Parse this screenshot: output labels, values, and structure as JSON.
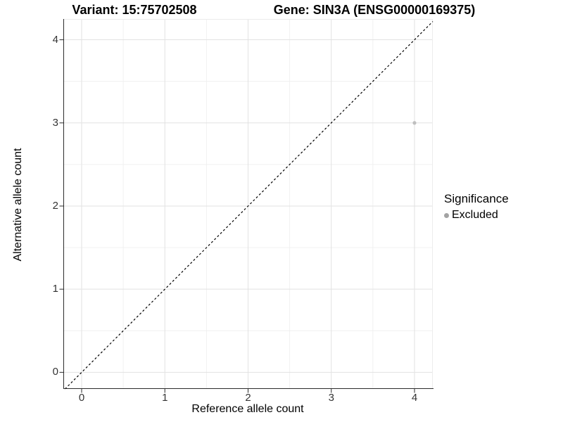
{
  "chart_data": {
    "type": "scatter",
    "title_left": "Variant: 15:75702508",
    "title_right": "Gene: SIN3A (ENSG00000169375)",
    "xlabel": "Reference allele count",
    "ylabel": "Alternative allele count",
    "xlim": [
      -0.22,
      4.22
    ],
    "ylim": [
      -0.2,
      4.25
    ],
    "x_ticks": [
      0,
      1,
      2,
      3,
      4
    ],
    "y_ticks": [
      0,
      1,
      2,
      3,
      4
    ],
    "minor_ticks": [
      0.5,
      1.5,
      2.5,
      3.5
    ],
    "grid": true,
    "series": [
      {
        "name": "Excluded",
        "color": "#bfbfbf",
        "points": [
          {
            "x": 4,
            "y": 3
          }
        ]
      }
    ],
    "reference_line": {
      "type": "identity",
      "style": "dashed",
      "color": "#000000"
    },
    "legend": {
      "position": "right",
      "title": "Significance",
      "entries": [
        {
          "label": "Excluded",
          "color": "#a3a3a3"
        }
      ]
    }
  },
  "colors": {
    "background": "#ffffff",
    "grid_major": "#e2e2e2",
    "grid_minor": "#f0f0f0",
    "panel_border": "#ececec",
    "axis_line": "#2b2b2b",
    "tick_mark": "#2b2b2b",
    "tick_label": "#333333"
  }
}
